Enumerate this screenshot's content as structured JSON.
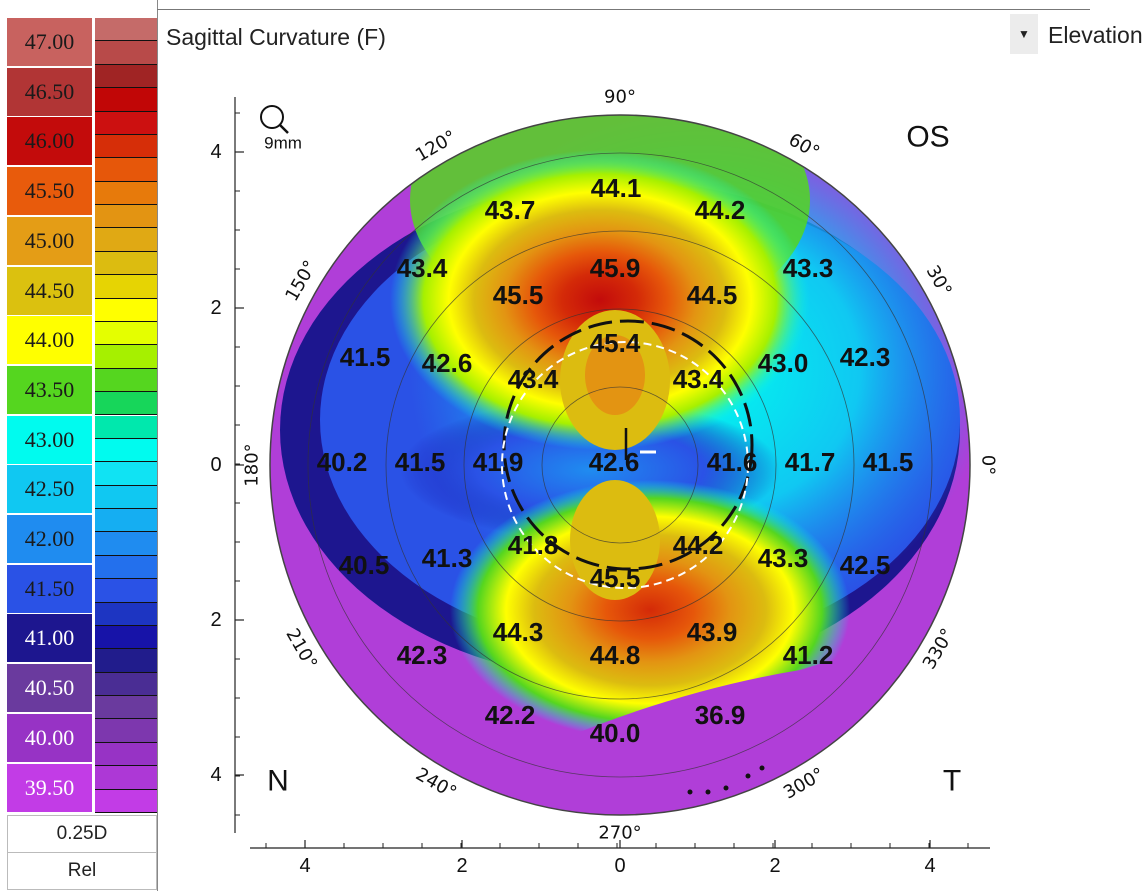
{
  "scale": {
    "labels": [
      "47.00",
      "46.50",
      "46.00",
      "45.50",
      "45.00",
      "44.50",
      "44.00",
      "43.50",
      "43.00",
      "42.50",
      "42.00",
      "41.50",
      "41.00",
      "40.50",
      "40.00",
      "39.50"
    ],
    "label_colors": [
      "#c8625f",
      "#b13535",
      "#c30b0b",
      "#e85b0c",
      "#e49d16",
      "#dbc10f",
      "#ffff00",
      "#55d61f",
      "#00fbef",
      "#10c8f2",
      "#1f8cf0",
      "#2a52e6",
      "#1d168f",
      "#6a3a9e",
      "#9733c5",
      "#c23ce6"
    ],
    "swatch_colors": [
      "#c56b69",
      "#b84a49",
      "#a02424",
      "#c10606",
      "#cc1010",
      "#d62e08",
      "#e6570a",
      "#e77a0b",
      "#e39412",
      "#e0a914",
      "#dcbc10",
      "#e6d403",
      "#ffff00",
      "#e4ff00",
      "#a6f000",
      "#55d61f",
      "#17d65a",
      "#00e8ad",
      "#00fbef",
      "#10e3f3",
      "#10c8f2",
      "#15aef2",
      "#1f8cf0",
      "#2370ed",
      "#2a52e6",
      "#1d35c2",
      "#1713a8",
      "#211c8c",
      "#4a2d94",
      "#6a3a9e",
      "#7d37ae",
      "#9733c5",
      "#ad38d6",
      "#c23ce6"
    ],
    "step": "0.25D",
    "mode": "Rel"
  },
  "header": {
    "title": "Sagittal Curvature (F)",
    "dropdown_label": "Elevation"
  },
  "map": {
    "eye": "OS",
    "zoom_label": "9mm",
    "nasal_label": "N",
    "temporal_label": "T",
    "angle_labels": [
      "90°",
      "60°",
      "30°",
      "0°",
      "330°",
      "300°",
      "270°",
      "240°",
      "210°",
      "180°",
      "150°",
      "120°"
    ],
    "y_axis_ticks": [
      "4",
      "2",
      "0",
      "2",
      "4"
    ],
    "x_axis_ticks": [
      "4",
      "2",
      "0",
      "2",
      "4"
    ],
    "values": [
      "44.1",
      "43.7",
      "44.2",
      "43.4",
      "45.9",
      "43.3",
      "45.5",
      "44.5",
      "45.4",
      "41.5",
      "42.6",
      "43.4",
      "43.4",
      "43.0",
      "42.3",
      "40.2",
      "41.5",
      "41.9",
      "42.6",
      "41.6",
      "41.7",
      "41.5",
      "41.8",
      "44.2",
      "40.5",
      "41.3",
      "43.3",
      "42.5",
      "45.5",
      "44.3",
      "43.9",
      "42.3",
      "44.8",
      "41.2",
      "42.2",
      "36.9",
      "40.0"
    ]
  }
}
